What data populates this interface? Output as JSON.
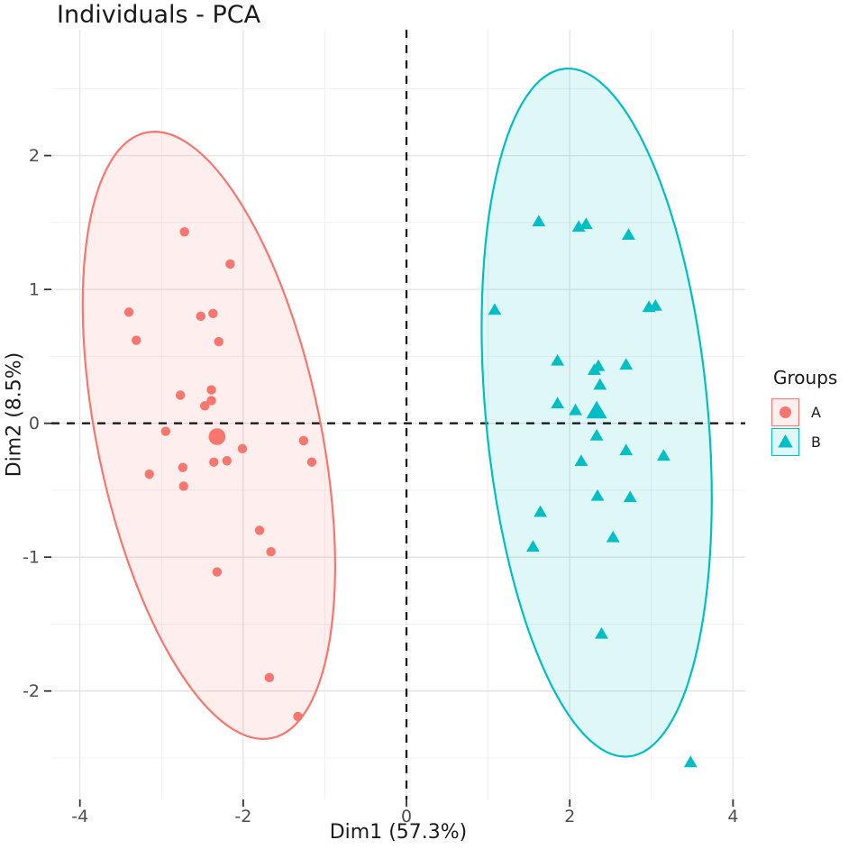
{
  "title": "Individuals - PCA",
  "colors": {
    "group_a": "#F8766D",
    "group_b": "#00BFC4",
    "group_a_fill": "rgba(248,118,109,0.12)",
    "group_b_fill": "rgba(0,191,196,0.12)",
    "ref_line": "#111111",
    "grid_major": "#E3E3E3",
    "grid_minor": "#F0F0F0",
    "tick_mark": "#333333",
    "tick_label": "#4D4D4D",
    "text": "#1A1A1A",
    "background": "#FFFFFF"
  },
  "legend": {
    "title": "Groups",
    "position": "right",
    "entries": [
      {
        "label": "A",
        "marker": "circle",
        "color": "#F8766D"
      },
      {
        "label": "B",
        "marker": "triangle",
        "color": "#00BFC4"
      }
    ]
  },
  "chart_data": {
    "type": "scatter",
    "title": "Individuals - PCA",
    "xlabel": "Dim1 (57.3%)",
    "ylabel": "Dim2 (8.5%)",
    "xlim": [
      -4.35,
      4.15
    ],
    "ylim": [
      -2.81,
      2.94
    ],
    "x_ticks": [
      -4,
      -2,
      0,
      2,
      4
    ],
    "x_minor_gridlines": [
      -3,
      -1,
      1,
      3
    ],
    "y_ticks": [
      -2,
      -1,
      0,
      1,
      2
    ],
    "y_minor_gridlines": [
      -2.5,
      -1.5,
      -0.5,
      0.5,
      1.5,
      2.5
    ],
    "grid": true,
    "legend_position": "right",
    "ref_lines": {
      "vline_x": 0,
      "hline_y": 0,
      "style": "dashed"
    },
    "series": [
      {
        "name": "A",
        "marker": "circle",
        "color": "#F8766D",
        "points": [
          [
            -2.72,
            1.43
          ],
          [
            -2.16,
            1.19
          ],
          [
            -3.4,
            0.83
          ],
          [
            -2.52,
            0.8
          ],
          [
            -2.37,
            0.82
          ],
          [
            -3.31,
            0.62
          ],
          [
            -2.3,
            0.61
          ],
          [
            -2.77,
            0.21
          ],
          [
            -2.39,
            0.25
          ],
          [
            -2.39,
            0.17
          ],
          [
            -2.47,
            0.13
          ],
          [
            -2.95,
            -0.06
          ],
          [
            -2.01,
            -0.19
          ],
          [
            -1.26,
            -0.13
          ],
          [
            -1.16,
            -0.29
          ],
          [
            -2.2,
            -0.28
          ],
          [
            -2.36,
            -0.29
          ],
          [
            -2.74,
            -0.33
          ],
          [
            -3.15,
            -0.38
          ],
          [
            -2.73,
            -0.47
          ],
          [
            -1.8,
            -0.8
          ],
          [
            -1.66,
            -0.96
          ],
          [
            -2.32,
            -1.11
          ],
          [
            -1.68,
            -1.9
          ],
          [
            -1.33,
            -2.19
          ]
        ],
        "mean_point": [
          -2.32,
          -0.1
        ],
        "ellipse": {
          "center": [
            -2.42,
            -0.09
          ],
          "semi_minor_x": 1.37,
          "semi_major_y": 2.31,
          "angle_deg": -11.7
        }
      },
      {
        "name": "B",
        "marker": "triangle",
        "color": "#00BFC4",
        "points": [
          [
            1.62,
            1.5
          ],
          [
            2.11,
            1.46
          ],
          [
            2.2,
            1.48
          ],
          [
            2.72,
            1.4
          ],
          [
            1.08,
            0.84
          ],
          [
            2.97,
            0.86
          ],
          [
            3.05,
            0.87
          ],
          [
            1.85,
            0.46
          ],
          [
            2.3,
            0.39
          ],
          [
            2.35,
            0.42
          ],
          [
            2.69,
            0.43
          ],
          [
            2.37,
            0.28
          ],
          [
            1.85,
            0.14
          ],
          [
            2.07,
            0.09
          ],
          [
            2.33,
            -0.1
          ],
          [
            2.69,
            -0.21
          ],
          [
            3.15,
            -0.25
          ],
          [
            2.14,
            -0.29
          ],
          [
            2.34,
            -0.55
          ],
          [
            2.74,
            -0.56
          ],
          [
            1.64,
            -0.67
          ],
          [
            2.53,
            -0.86
          ],
          [
            1.55,
            -0.93
          ],
          [
            2.39,
            -1.58
          ],
          [
            3.48,
            -2.54
          ]
        ],
        "mean_point": [
          2.33,
          0.08
        ],
        "ellipse": {
          "center": [
            2.33,
            0.08
          ],
          "semi_minor_x": 1.36,
          "semi_major_y": 2.58,
          "angle_deg": -5.3
        }
      }
    ]
  }
}
